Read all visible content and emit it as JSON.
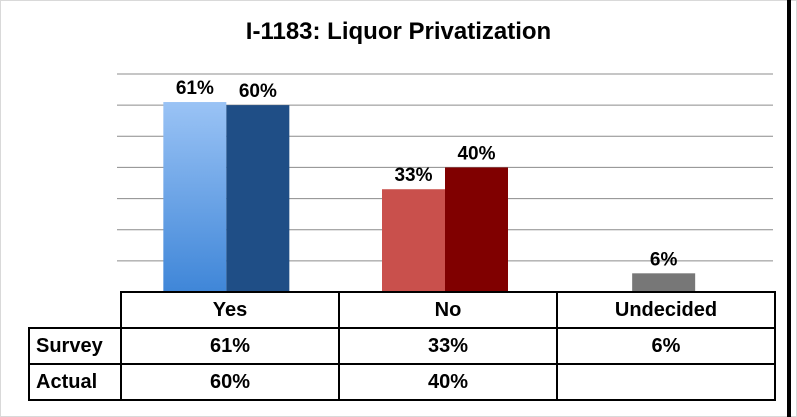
{
  "chart_data": {
    "type": "bar",
    "title": "I-1183: Liquor Privatization",
    "categories": [
      "Yes",
      "No",
      "Undecided"
    ],
    "series": [
      {
        "name": "Survey",
        "values": [
          61,
          33,
          6
        ],
        "labels": [
          "61%",
          "33%",
          "6%"
        ],
        "colors": [
          "#74a9eb",
          "#c9504c",
          "#777777"
        ]
      },
      {
        "name": "Actual",
        "values": [
          60,
          40,
          null
        ],
        "labels": [
          "60%",
          "40%",
          ""
        ],
        "colors": [
          "#1f4e86",
          "#800000",
          "#777777"
        ]
      }
    ],
    "ylim": [
      0,
      70
    ],
    "grid": true,
    "legend": "none (data table below chart)"
  },
  "table": {
    "header": [
      "Yes",
      "No",
      "Undecided"
    ],
    "rows": [
      {
        "label": "Survey",
        "cells": [
          "61%",
          "33%",
          "6%"
        ]
      },
      {
        "label": "Actual",
        "cells": [
          "60%",
          "40%",
          ""
        ]
      }
    ]
  }
}
